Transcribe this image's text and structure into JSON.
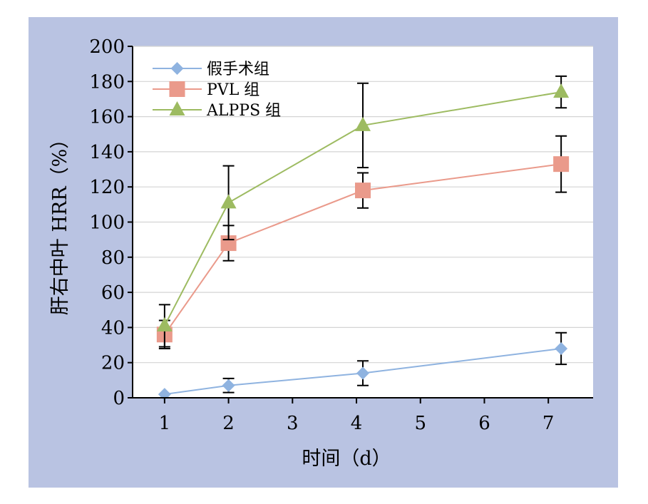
{
  "chart_data": {
    "type": "line",
    "title": "",
    "xlabel": "时间（d）",
    "ylabel": "肝右中叶 HRR（%）",
    "x_ticks": [
      "1",
      "2",
      "3",
      "4",
      "5",
      "6",
      "7"
    ],
    "xlim": [
      0.5,
      7.7
    ],
    "ylim": [
      0,
      200
    ],
    "y_ticks": [
      "0",
      "20",
      "40",
      "60",
      "80",
      "100",
      "120",
      "140",
      "160",
      "180",
      "200"
    ],
    "grid": "horizontal",
    "legend_position": "top-left",
    "series": [
      {
        "name": "假手术组",
        "marker": "diamond",
        "color": "#8fb3e0",
        "x": [
          1,
          2,
          4.1,
          7.2
        ],
        "y": [
          2,
          7,
          14,
          28
        ],
        "err": [
          null,
          4,
          7,
          9
        ]
      },
      {
        "name": "PVL 组",
        "marker": "square",
        "color": "#ea9a8b",
        "x": [
          1,
          2,
          4.1,
          7.2
        ],
        "y": [
          36,
          88,
          118,
          133
        ],
        "err": [
          8,
          10,
          10,
          16
        ]
      },
      {
        "name": "ALPPS 组",
        "marker": "triangle",
        "color": "#9dbb61",
        "x": [
          1,
          2,
          4.1,
          7.2
        ],
        "y": [
          41,
          111,
          155,
          174
        ],
        "err": [
          12,
          21,
          24,
          9
        ]
      }
    ]
  }
}
